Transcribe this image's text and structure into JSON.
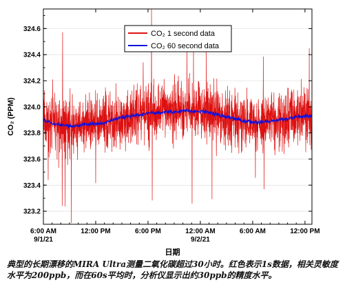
{
  "chart_data": {
    "type": "line",
    "ylabel": "CO₂ (PPM)",
    "ylim": [
      323.1,
      324.75
    ],
    "yticks": [
      323.2,
      323.4,
      323.6,
      323.8,
      324.0,
      324.2,
      324.4,
      324.6
    ],
    "ytick_labels": [
      "323.2",
      "323.4",
      "323.6",
      "323.8",
      "324.0",
      "324.2",
      "324.4",
      "324.6"
    ],
    "x_unit": "hours since 9/1/21 6:00 AM",
    "xlim": [
      0,
      30.8
    ],
    "xticks": [
      0,
      6,
      12,
      18,
      24,
      30
    ],
    "xtick_labels": [
      {
        "time": "6:00 AM",
        "date": "9/1/21"
      },
      {
        "time": "12:00 PM",
        "date": ""
      },
      {
        "time": "6:00 PM",
        "date": ""
      },
      {
        "time": "12:00 AM",
        "date": "9/2/21"
      },
      {
        "time": "6:00 AM",
        "date": ""
      },
      {
        "time": "12:00 PM",
        "date": ""
      }
    ],
    "legend_position": "top-right",
    "series": [
      {
        "name": "CO₂ 1 second data",
        "color": "#dd1111",
        "noise_1sigma_ppm": 0.2,
        "envelope_ppm": [
          323.3,
          324.7
        ]
      },
      {
        "name": "CO₂ 60 second data",
        "color": "#1111dd",
        "x": [
          0,
          1,
          2,
          3,
          4,
          5,
          6,
          7,
          8,
          9,
          10,
          11,
          12,
          13,
          14,
          15,
          16,
          17,
          18,
          19,
          20,
          21,
          22,
          23,
          24,
          25,
          26,
          27,
          28,
          29,
          30,
          30.8
        ],
        "y": [
          323.9,
          323.87,
          323.86,
          323.85,
          323.86,
          323.87,
          323.87,
          323.88,
          323.9,
          323.92,
          323.93,
          323.94,
          323.95,
          323.95,
          323.96,
          323.96,
          323.97,
          323.97,
          323.97,
          323.96,
          323.94,
          323.92,
          323.91,
          323.89,
          323.88,
          323.88,
          323.89,
          323.9,
          323.91,
          323.92,
          323.93,
          323.93
        ]
      }
    ]
  },
  "x_axis_name": "日期",
  "caption": "典型的长期漂移的MIRA Ultra测量二氧化碳超过30小时。红色表示1s数据，相关灵敏度水平为200ppb，而在60s平均时，分析仪显示出约30ppb的精度水平。"
}
